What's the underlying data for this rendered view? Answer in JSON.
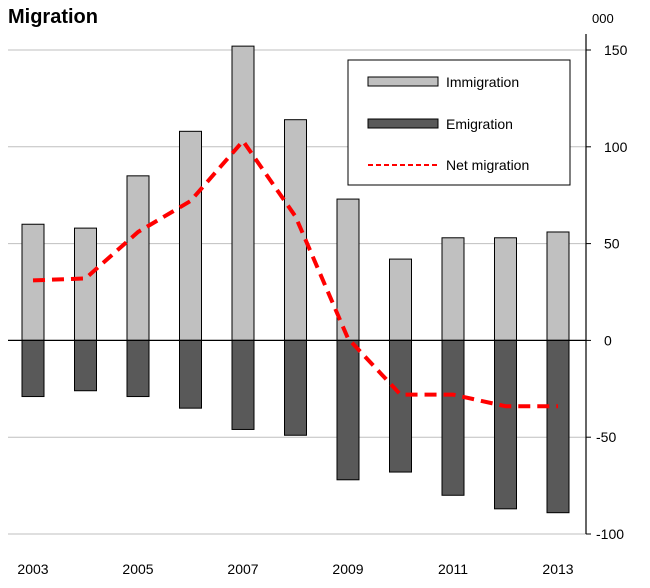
{
  "chart_data": {
    "type": "bar",
    "title": "Migration",
    "unit_label": "000",
    "categories": [
      "2003",
      "2004",
      "2005",
      "2006",
      "2007",
      "2008",
      "2009",
      "2010",
      "2011",
      "2012",
      "2013"
    ],
    "x_tick_labels": [
      "2003",
      "2005",
      "2007",
      "2009",
      "2011",
      "2013"
    ],
    "series": [
      {
        "name": "Immigration",
        "kind": "bar",
        "color": "#c0c0c0",
        "values": [
          60,
          58,
          85,
          108,
          152,
          114,
          73,
          42,
          53,
          53,
          56
        ]
      },
      {
        "name": "Emigration",
        "kind": "bar",
        "color": "#595959",
        "values": [
          -29,
          -26,
          -29,
          -35,
          -46,
          -49,
          -72,
          -68,
          -80,
          -87,
          -89
        ]
      },
      {
        "name": "Net migration",
        "kind": "line",
        "color": "#ff0000",
        "dashed": true,
        "values": [
          31,
          32,
          56,
          72,
          103,
          64,
          1,
          -28,
          -28,
          -34,
          -34
        ]
      }
    ],
    "ylim": [
      -100,
      150
    ],
    "yticks": [
      -100,
      -50,
      0,
      50,
      100,
      150
    ],
    "ytick_labels": [
      "-100",
      "-50",
      "0",
      "50",
      "100",
      "150"
    ],
    "y_axis_side": "right",
    "grid": true,
    "legend_position": "top-right"
  }
}
